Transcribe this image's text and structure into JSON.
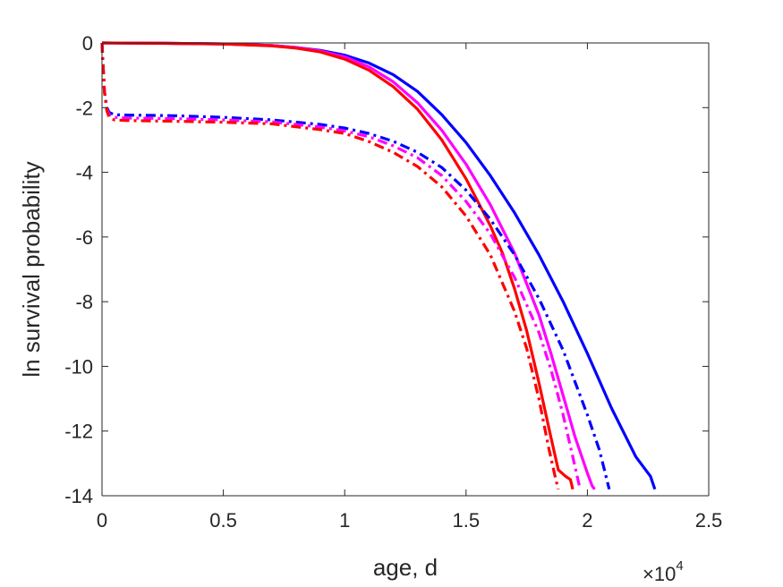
{
  "chart_data": {
    "type": "line",
    "title": "",
    "xlabel": "age, d",
    "ylabel": "ln survival probability",
    "x_multiplier_label": "×10",
    "x_multiplier_exponent": "4",
    "x_display_scale": 10000,
    "xlim": [
      0,
      25000
    ],
    "ylim": [
      -14,
      0
    ],
    "x_ticks": [
      0,
      5000,
      10000,
      15000,
      20000,
      25000
    ],
    "x_tick_labels": [
      "0",
      "0.5",
      "1",
      "1.5",
      "2",
      "2.5"
    ],
    "y_ticks": [
      0,
      -2,
      -4,
      -6,
      -8,
      -10,
      -12,
      -14
    ],
    "y_tick_labels": [
      "0",
      "-2",
      "-4",
      "-6",
      "-8",
      "-10",
      "-12",
      "-14"
    ],
    "grid": false,
    "legend": null,
    "series": [
      {
        "color": "#0000ff",
        "style": "solid",
        "x": [
          0,
          2500,
          5000,
          7000,
          8000,
          9000,
          10000,
          11000,
          12000,
          13000,
          14000,
          15000,
          16000,
          17000,
          18000,
          19000,
          20000,
          21000,
          22000,
          22600,
          22780
        ],
        "y": [
          0,
          -0.01,
          -0.03,
          -0.08,
          -0.14,
          -0.23,
          -0.38,
          -0.62,
          -0.98,
          -1.5,
          -2.22,
          -3.08,
          -4.1,
          -5.25,
          -6.55,
          -8.0,
          -9.6,
          -11.3,
          -12.8,
          -13.4,
          -13.8
        ]
      },
      {
        "color": "#ff00ff",
        "style": "solid",
        "x": [
          0,
          2500,
          5000,
          7000,
          8000,
          9000,
          10000,
          11000,
          12000,
          13000,
          14000,
          15000,
          16000,
          17000,
          18000,
          18500,
          19000,
          19500,
          20000,
          20200,
          20300
        ],
        "y": [
          0,
          -0.01,
          -0.03,
          -0.08,
          -0.14,
          -0.25,
          -0.43,
          -0.74,
          -1.2,
          -1.85,
          -2.7,
          -3.75,
          -5.0,
          -6.5,
          -8.4,
          -9.6,
          -10.9,
          -12.2,
          -13.3,
          -13.7,
          -13.8
        ]
      },
      {
        "color": "#ff0000",
        "style": "solid",
        "x": [
          0,
          2500,
          5000,
          7000,
          8000,
          9000,
          10000,
          11000,
          12000,
          13000,
          14000,
          15000,
          16000,
          16500,
          17000,
          17500,
          18000,
          18500,
          18800,
          19100,
          19300,
          19400
        ],
        "y": [
          0,
          -0.01,
          -0.03,
          -0.09,
          -0.16,
          -0.28,
          -0.5,
          -0.84,
          -1.35,
          -2.05,
          -3.0,
          -4.2,
          -5.65,
          -6.5,
          -7.6,
          -8.9,
          -10.5,
          -12.2,
          -13.2,
          -13.4,
          -13.5,
          -13.8
        ]
      },
      {
        "color": "#0000ff",
        "style": "dashdot",
        "x": [
          0,
          50,
          100,
          200,
          300,
          500,
          1000,
          3000,
          5000,
          7000,
          9000,
          10000,
          11000,
          12000,
          13000,
          14000,
          15000,
          16000,
          17000,
          18000,
          19000,
          20000,
          20500,
          20900
        ],
        "y": [
          0,
          -0.8,
          -1.5,
          -2.0,
          -2.15,
          -2.22,
          -2.23,
          -2.25,
          -2.3,
          -2.38,
          -2.52,
          -2.63,
          -2.8,
          -3.04,
          -3.38,
          -3.85,
          -4.55,
          -5.45,
          -6.55,
          -7.9,
          -9.5,
          -11.5,
          -12.6,
          -13.8
        ]
      },
      {
        "color": "#ff00ff",
        "style": "dashdot",
        "x": [
          0,
          50,
          100,
          200,
          300,
          500,
          1000,
          3000,
          5000,
          7000,
          9000,
          10000,
          11000,
          12000,
          13000,
          14000,
          15000,
          16000,
          17000,
          18000,
          18500,
          19000,
          19400,
          19700
        ],
        "y": [
          0,
          -0.8,
          -1.5,
          -2.05,
          -2.22,
          -2.3,
          -2.32,
          -2.34,
          -2.38,
          -2.44,
          -2.6,
          -2.72,
          -2.9,
          -3.18,
          -3.55,
          -4.1,
          -4.9,
          -5.9,
          -7.25,
          -8.95,
          -10.1,
          -11.5,
          -12.8,
          -13.8
        ]
      },
      {
        "color": "#ff0000",
        "style": "dashdot",
        "x": [
          0,
          50,
          100,
          200,
          300,
          500,
          1000,
          3000,
          5000,
          7000,
          9000,
          10000,
          11000,
          12000,
          13000,
          14000,
          15000,
          16000,
          17000,
          17500,
          18000,
          18400,
          18700,
          18800
        ],
        "y": [
          0,
          -0.8,
          -1.5,
          -2.1,
          -2.3,
          -2.38,
          -2.4,
          -2.42,
          -2.45,
          -2.5,
          -2.68,
          -2.8,
          -3.05,
          -3.38,
          -3.82,
          -4.45,
          -5.35,
          -6.55,
          -8.3,
          -9.45,
          -11.0,
          -12.5,
          -13.5,
          -13.8
        ]
      }
    ]
  }
}
